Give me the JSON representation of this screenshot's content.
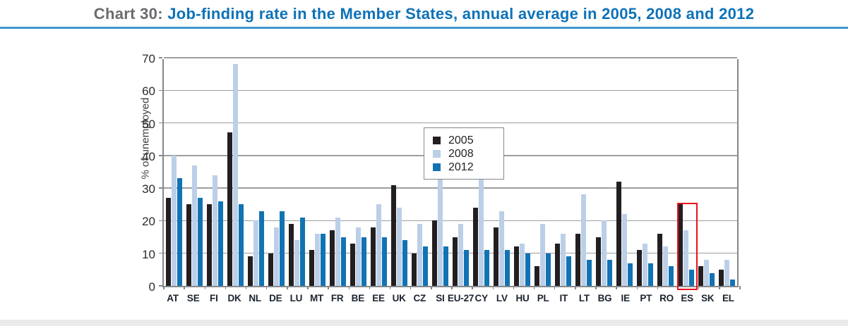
{
  "header": {
    "label": "Chart 30:",
    "title": "Job-finding rate in the Member States, annual average in 2005, 2008 and 2012"
  },
  "colors": {
    "title_label_gray": "#6a6b6e",
    "title_blue": "#0d72b8",
    "header_rule_blue": "#3d96d2",
    "series_2005": "#231f20",
    "series_2008": "#bccfe8",
    "series_2012": "#1173b3",
    "gridline_gray": "#9c9ea1",
    "axis_gray": "#85878a",
    "highlight_red": "#e8121c"
  },
  "chart_data": {
    "type": "bar",
    "title": "Job-finding rate in the Member States, annual average in 2005, 2008 and 2012",
    "xlabel": "",
    "ylabel": "% of unemployed",
    "ylim": [
      0,
      70
    ],
    "yticks": [
      0,
      10,
      20,
      30,
      40,
      50,
      60,
      70
    ],
    "grid": "horizontal",
    "legend_position": "inside-upper-left",
    "categories": [
      "AT",
      "SE",
      "FI",
      "DK",
      "NL",
      "DE",
      "LU",
      "MT",
      "FR",
      "BE",
      "EE",
      "UK",
      "CZ",
      "SI",
      "EU-27",
      "CY",
      "LV",
      "HU",
      "PL",
      "IT",
      "LT",
      "BG",
      "IE",
      "PT",
      "RO",
      "ES",
      "SK",
      "EL"
    ],
    "series": [
      {
        "name": "2005",
        "color": "#231f20",
        "values": [
          27,
          25,
          25,
          47,
          9,
          10,
          19,
          11,
          17,
          13,
          18,
          31,
          10,
          20,
          15,
          24,
          18,
          12,
          6,
          13,
          16,
          15,
          32,
          11,
          16,
          25,
          6,
          5
        ]
      },
      {
        "name": "2008",
        "color": "#bccfe8",
        "values": [
          40,
          37,
          34,
          68,
          20,
          18,
          14,
          16,
          21,
          18,
          25,
          24,
          19,
          33,
          19,
          44,
          23,
          13,
          19,
          16,
          28,
          20,
          22,
          13,
          12,
          17,
          8,
          8
        ]
      },
      {
        "name": "2012",
        "color": "#1173b3",
        "values": [
          33,
          27,
          26,
          25,
          23,
          23,
          21,
          16,
          15,
          15,
          15,
          14,
          12,
          12,
          11,
          11,
          11,
          10,
          10,
          9,
          8,
          8,
          7,
          7,
          6,
          5,
          4,
          2
        ]
      }
    ],
    "annotations": [
      {
        "type": "highlight-box",
        "category": "ES",
        "ymin": 0,
        "ymax": 26,
        "color": "#e8121c"
      }
    ]
  }
}
